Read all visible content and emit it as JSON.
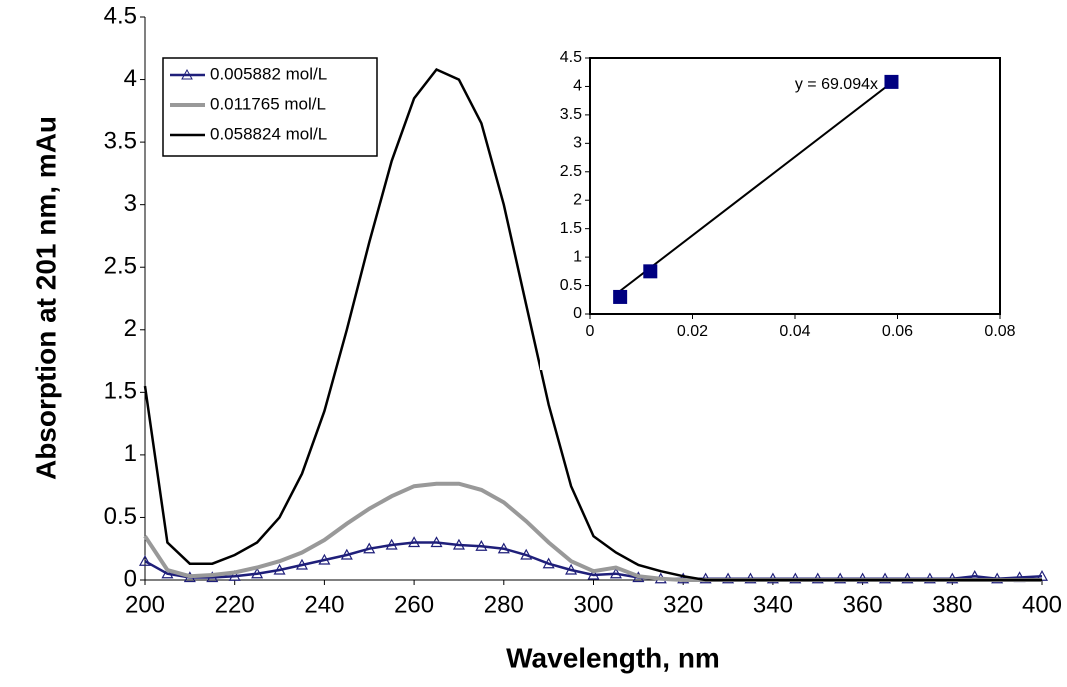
{
  "chart_data": [
    {
      "type": "line",
      "xlabel": "Wavelength, nm",
      "ylabel": "Absorption at 201 nm, mAu",
      "x": [
        200,
        205,
        210,
        215,
        220,
        225,
        230,
        235,
        240,
        245,
        250,
        255,
        260,
        265,
        270,
        275,
        280,
        285,
        290,
        295,
        300,
        305,
        310,
        315,
        320,
        325,
        330,
        335,
        340,
        345,
        350,
        355,
        360,
        365,
        370,
        375,
        380,
        385,
        390,
        395,
        400
      ],
      "series": [
        {
          "name": "0.005882 mol/L",
          "color": "#1f1f7a",
          "marker": "triangle",
          "values": [
            0.15,
            0.05,
            0.02,
            0.02,
            0.03,
            0.05,
            0.08,
            0.12,
            0.16,
            0.2,
            0.25,
            0.28,
            0.3,
            0.3,
            0.28,
            0.27,
            0.25,
            0.2,
            0.13,
            0.08,
            0.04,
            0.05,
            0.02,
            0.01,
            0.01,
            0.01,
            0.01,
            0.01,
            0.01,
            0.01,
            0.01,
            0.01,
            0.01,
            0.01,
            0.01,
            0.01,
            0.01,
            0.03,
            0.01,
            0.02,
            0.03
          ]
        },
        {
          "name": "0.011765 mol/L",
          "color": "#999999",
          "values": [
            0.35,
            0.08,
            0.03,
            0.04,
            0.06,
            0.1,
            0.15,
            0.22,
            0.32,
            0.45,
            0.57,
            0.67,
            0.75,
            0.77,
            0.77,
            0.72,
            0.62,
            0.47,
            0.3,
            0.15,
            0.07,
            0.1,
            0.03,
            0.01,
            0,
            0,
            0,
            0,
            0,
            0,
            0,
            0,
            0,
            0,
            0,
            0,
            0,
            0,
            0,
            0,
            0
          ]
        },
        {
          "name": "0.058824 mol/L",
          "color": "#000000",
          "values": [
            1.55,
            0.3,
            0.13,
            0.13,
            0.2,
            0.3,
            0.5,
            0.85,
            1.35,
            2.0,
            2.7,
            3.35,
            3.85,
            4.08,
            4.0,
            3.65,
            3.0,
            2.2,
            1.4,
            0.75,
            0.35,
            0.22,
            0.12,
            0.07,
            0.03,
            0,
            0,
            0,
            0,
            0,
            0,
            0,
            0,
            0,
            0,
            0,
            0,
            0,
            0,
            0,
            0
          ]
        }
      ],
      "xlim": [
        200,
        400
      ],
      "xticks": [
        200,
        220,
        240,
        260,
        280,
        300,
        320,
        340,
        360,
        380,
        400
      ],
      "ylim": [
        0,
        4.5
      ],
      "yticks": [
        0,
        0.5,
        1,
        1.5,
        2,
        2.5,
        3,
        3.5,
        4,
        4.5
      ],
      "legend": "upper-left"
    },
    {
      "type": "scatter",
      "x": [
        0.005882,
        0.011765,
        0.058824
      ],
      "values": [
        0.3,
        0.75,
        4.08
      ],
      "color": "#000080",
      "trendline": {
        "slope": 69.094,
        "label": "y = 69.094x"
      },
      "xlim": [
        0,
        0.08
      ],
      "xticks": [
        0,
        0.02,
        0.04,
        0.06,
        0.08
      ],
      "ylim": [
        0,
        4.5
      ],
      "yticks": [
        0,
        0.5,
        1,
        1.5,
        2,
        2.5,
        3,
        3.5,
        4,
        4.5
      ]
    }
  ]
}
